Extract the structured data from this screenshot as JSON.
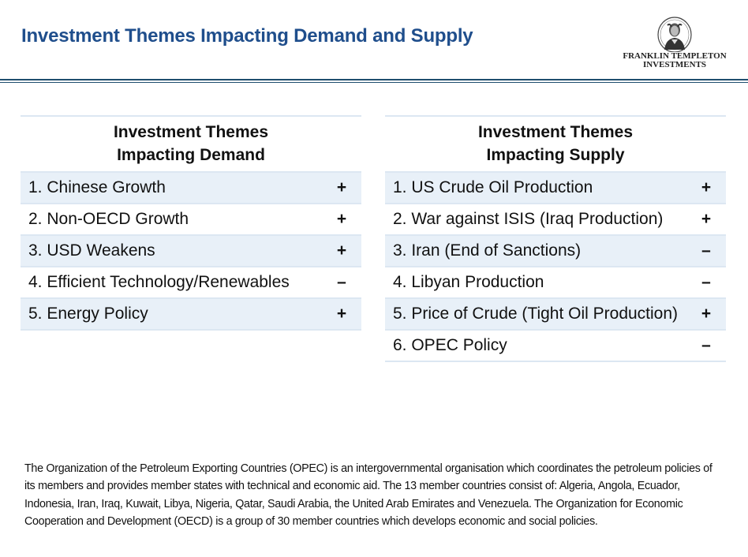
{
  "slide": {
    "title": "Investment Themes Impacting Demand and Supply",
    "logo": {
      "line1": "FRANKLIN TEMPLETON",
      "line2": "INVESTMENTS",
      "icon": "benjamin-franklin-portrait-icon"
    }
  },
  "demand_table": {
    "header_line1": "Investment Themes",
    "header_line2": "Impacting Demand",
    "rows": [
      {
        "label": "1. Chinese Growth",
        "sign": "+"
      },
      {
        "label": "2. Non-OECD Growth",
        "sign": "+"
      },
      {
        "label": "3. USD Weakens",
        "sign": "+"
      },
      {
        "label": "4. Efficient Technology/Renewables",
        "sign": "–"
      },
      {
        "label": "5. Energy Policy",
        "sign": "+"
      }
    ]
  },
  "supply_table": {
    "header_line1": "Investment Themes",
    "header_line2": "Impacting Supply",
    "rows": [
      {
        "label": "1. US Crude Oil Production",
        "sign": "+"
      },
      {
        "label": "2. War against ISIS (Iraq Production)",
        "sign": "+"
      },
      {
        "label": "3. Iran (End of Sanctions)",
        "sign": "–"
      },
      {
        "label": "4. Libyan Production",
        "sign": "–"
      },
      {
        "label": "5. Price of Crude (Tight Oil Production)",
        "sign": "+"
      },
      {
        "label": "6. OPEC Policy",
        "sign": "–"
      }
    ]
  },
  "footnote": "The Organization of the Petroleum Exporting Countries (OPEC) is an intergovernmental organisation which coordinates the petroleum policies of its members and provides member states with technical and economic aid. The 13 member countries consist of: Algeria, Angola, Ecuador, Indonesia, Iran, Iraq, Kuwait, Libya, Nigeria, Qatar, Saudi Arabia, the United Arab Emirates and Venezuela. The Organization for Economic Cooperation and Development (OECD) is a group of 30 member countries which develops economic and social policies.",
  "colors": {
    "title": "#1f4e8c",
    "rule": "#1f4e6e",
    "row_shade": "#e8f0f8"
  }
}
